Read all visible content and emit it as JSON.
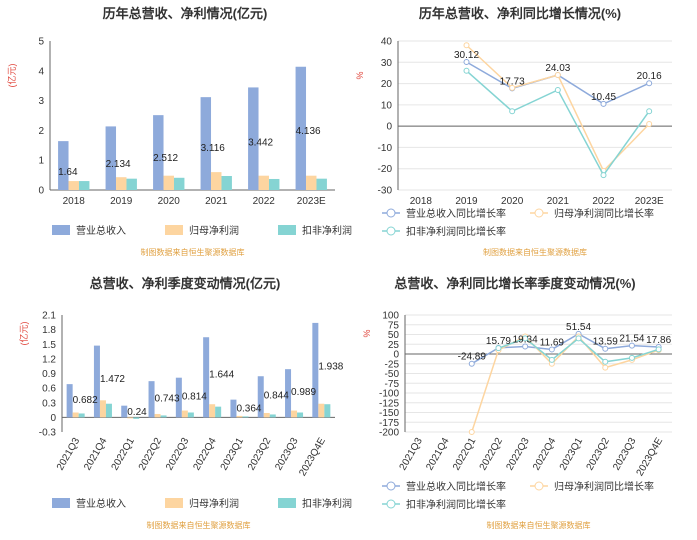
{
  "colors": {
    "blue": "#8eaadb",
    "orange": "#fdd5a0",
    "teal": "#85d4d3",
    "axis": "#666666",
    "grid": "#e6e6e6",
    "unit": "#e0443a",
    "source": "#e0a040"
  },
  "source_text": "制图数据来自恒生聚源数据库",
  "chart_data": [
    {
      "type": "bar",
      "title": "历年总营收、净利情况(亿元)",
      "ylabel": "(亿元)",
      "ylim": [
        0,
        5
      ],
      "yticks": [
        "0",
        "1",
        "2",
        "3",
        "4",
        "5"
      ],
      "categories": [
        "2018",
        "2019",
        "2020",
        "2021",
        "2022",
        "2023E"
      ],
      "series": [
        {
          "name": "营业总收入",
          "values": [
            1.64,
            2.134,
            2.512,
            3.116,
            3.442,
            4.136
          ],
          "labels": [
            "1.64",
            "2.134",
            "2.512",
            "3.116",
            "3.442",
            "4.136"
          ]
        },
        {
          "name": "归母净利润",
          "values": [
            0.3,
            0.43,
            0.48,
            0.6,
            0.48,
            0.48
          ]
        },
        {
          "name": "扣非净利润",
          "values": [
            0.3,
            0.38,
            0.41,
            0.47,
            0.37,
            0.38
          ]
        }
      ],
      "legend": "bottom"
    },
    {
      "type": "line",
      "title": "历年总营收、净利同比增长情况(%)",
      "ylabel": "%",
      "ylim": [
        -30,
        40
      ],
      "yticks": [
        "-30",
        "-20",
        "-10",
        "0",
        "10",
        "20",
        "30",
        "40"
      ],
      "categories": [
        "2018",
        "2019",
        "2020",
        "2021",
        "2022",
        "2023E"
      ],
      "series": [
        {
          "name": "营业总收入同比增长率",
          "values": [
            null,
            30.12,
            17.73,
            24.03,
            10.45,
            20.16
          ],
          "labels": [
            "",
            "30.12",
            "17.73",
            "24.03",
            "10.45",
            "20.16"
          ]
        },
        {
          "name": "归母净利润同比增长率",
          "values": [
            null,
            38,
            18,
            24,
            -21,
            1
          ]
        },
        {
          "name": "扣非净利润同比增长率",
          "values": [
            null,
            26,
            7,
            17,
            -23,
            7
          ]
        }
      ],
      "legend": "bottom"
    },
    {
      "type": "bar",
      "title": "总营收、净利季度变动情况(亿元)",
      "ylabel": "(亿元)",
      "ylim": [
        -0.3,
        2.1
      ],
      "yticks": [
        "-0.3",
        "0",
        "0.3",
        "0.6",
        "0.9",
        "1.2",
        "1.5",
        "1.8",
        "2.1"
      ],
      "categories": [
        "2021Q3",
        "2021Q4",
        "2022Q1",
        "2022Q2",
        "2022Q3",
        "2022Q4",
        "2023Q1",
        "2023Q2",
        "2023Q3",
        "2023Q4E"
      ],
      "series": [
        {
          "name": "营业总收入",
          "values": [
            0.682,
            1.472,
            0.24,
            0.743,
            0.814,
            1.644,
            0.364,
            0.844,
            0.989,
            1.938
          ],
          "labels": [
            "0.682",
            "1.472",
            "0.24",
            "0.743",
            "0.814",
            "1.644",
            "0.364",
            "0.844",
            "0.989",
            "1.938"
          ]
        },
        {
          "name": "归母净利润",
          "values": [
            0.1,
            0.35,
            -0.02,
            0.07,
            0.14,
            0.27,
            0.03,
            0.09,
            0.14,
            0.28
          ]
        },
        {
          "name": "扣非净利润",
          "values": [
            0.08,
            0.28,
            -0.03,
            0.04,
            0.1,
            0.22,
            0.02,
            0.06,
            0.1,
            0.27
          ]
        }
      ],
      "legend": "bottom"
    },
    {
      "type": "line",
      "title": "总营收、净利同比增长率季度变动情况(%)",
      "ylabel": "%",
      "ylim": [
        -200,
        100
      ],
      "yticks": [
        "-200",
        "-175",
        "-150",
        "-125",
        "-100",
        "-75",
        "-50",
        "-25",
        "0",
        "25",
        "50",
        "75",
        "100"
      ],
      "categories": [
        "2021Q3",
        "2021Q4",
        "2022Q1",
        "2022Q2",
        "2022Q3",
        "2022Q4",
        "2023Q1",
        "2023Q2",
        "2023Q3",
        "2023Q4E"
      ],
      "series": [
        {
          "name": "营业总收入同比增长率",
          "values": [
            null,
            null,
            -24.89,
            15.79,
            19.34,
            11.69,
            51.54,
            13.59,
            21.54,
            17.86
          ],
          "labels": [
            "",
            "",
            "-24.89",
            "15.79",
            "19.34",
            "11.69",
            "51.54",
            "13.59",
            "21.54",
            "17.86"
          ]
        },
        {
          "name": "归母净利润同比增长率",
          "values": [
            null,
            null,
            -200,
            10,
            45,
            -25,
            45,
            -35,
            -15,
            10
          ]
        },
        {
          "name": "扣非净利润同比增长率",
          "values": [
            null,
            null,
            null,
            15,
            40,
            -15,
            40,
            -20,
            -10,
            12
          ]
        }
      ],
      "legend": "bottom"
    }
  ]
}
